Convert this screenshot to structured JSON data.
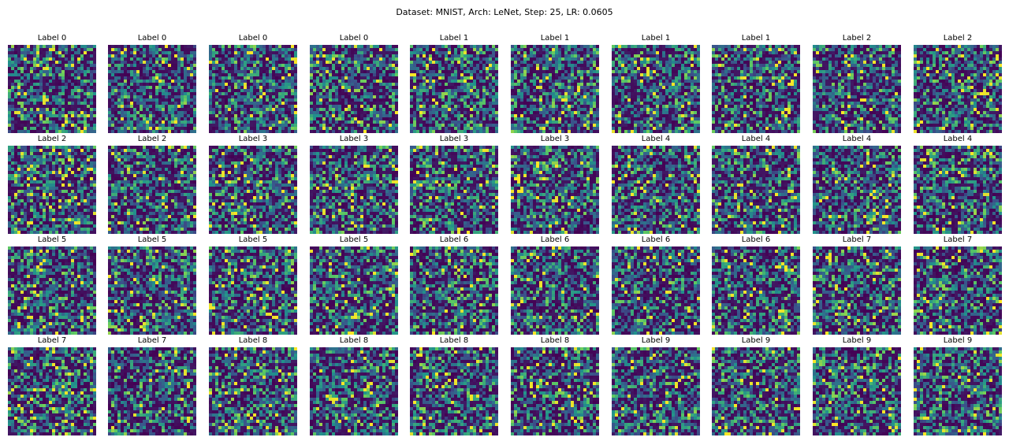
{
  "figure": {
    "title": "Dataset: MNIST, Arch: LeNet, Step: 25, LR: 0.0605"
  },
  "chart_data": {
    "type": "heatmap",
    "grid": false,
    "colormap": "viridis",
    "image_size": [
      28,
      28
    ],
    "layout": {
      "rows": 4,
      "cols": 10
    },
    "colors": {
      "low": "#440154",
      "mid_low": "#31688e",
      "mid": "#21908d",
      "mid_high": "#35b779",
      "high": "#fde725"
    },
    "panels": [
      {
        "title": "Label 0"
      },
      {
        "title": "Label 0"
      },
      {
        "title": "Label 0"
      },
      {
        "title": "Label 0"
      },
      {
        "title": "Label 1"
      },
      {
        "title": "Label 1"
      },
      {
        "title": "Label 1"
      },
      {
        "title": "Label 1"
      },
      {
        "title": "Label 2"
      },
      {
        "title": "Label 2"
      },
      {
        "title": "Label 2"
      },
      {
        "title": "Label 2"
      },
      {
        "title": "Label 3"
      },
      {
        "title": "Label 3"
      },
      {
        "title": "Label 3"
      },
      {
        "title": "Label 3"
      },
      {
        "title": "Label 4"
      },
      {
        "title": "Label 4"
      },
      {
        "title": "Label 4"
      },
      {
        "title": "Label 4"
      },
      {
        "title": "Label 5"
      },
      {
        "title": "Label 5"
      },
      {
        "title": "Label 5"
      },
      {
        "title": "Label 5"
      },
      {
        "title": "Label 6"
      },
      {
        "title": "Label 6"
      },
      {
        "title": "Label 6"
      },
      {
        "title": "Label 6"
      },
      {
        "title": "Label 7"
      },
      {
        "title": "Label 7"
      },
      {
        "title": "Label 7"
      },
      {
        "title": "Label 7"
      },
      {
        "title": "Label 8"
      },
      {
        "title": "Label 8"
      },
      {
        "title": "Label 8"
      },
      {
        "title": "Label 8"
      },
      {
        "title": "Label 9"
      },
      {
        "title": "Label 9"
      },
      {
        "title": "Label 9"
      },
      {
        "title": "Label 9"
      }
    ]
  }
}
